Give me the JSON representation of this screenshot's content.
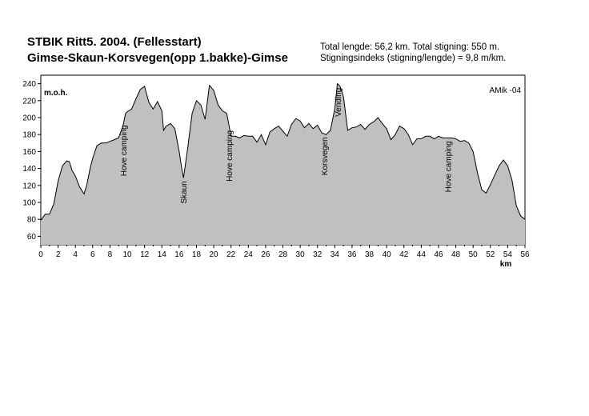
{
  "header": {
    "title_line1": "STBIK Ritt5.  2004.  (Fellesstart)",
    "title_line2": "Gimse-Skaun-Korsvegen(opp 1.bakke)-Gimse",
    "stats_line1": "Total lengde: 56,2 km.  Total stigning:  550 m.",
    "stats_line2": "Stigningsindeks (stigning/lengde) = 9,8 m/km."
  },
  "chart_data": {
    "type": "area",
    "title": "STBIK Ritt5.  2004.  (Fellesstart)",
    "subtitle": "Gimse-Skaun-Korsvegen(opp 1.bakke)-Gimse",
    "xlabel": "km",
    "ylabel": "m.o.h.",
    "author_tag": "AMik -04",
    "xlim": [
      0,
      56
    ],
    "ylim": [
      50,
      250
    ],
    "xticks": [
      0,
      2,
      4,
      6,
      8,
      10,
      12,
      14,
      16,
      18,
      20,
      22,
      24,
      26,
      28,
      30,
      32,
      34,
      36,
      38,
      40,
      42,
      44,
      46,
      48,
      50,
      52,
      54,
      56
    ],
    "yticks": [
      60,
      80,
      100,
      120,
      140,
      160,
      180,
      200,
      220,
      240
    ],
    "fill_color": "#c0c0c0",
    "line_color": "#000000",
    "series": [
      {
        "x": [
          0,
          0.5,
          1,
          1.5,
          2,
          2.5,
          3,
          3.3,
          3.6,
          4,
          4.5,
          5,
          5.3,
          5.7,
          6,
          6.5,
          7,
          7.5,
          8,
          8.5,
          9,
          9.5,
          9.8,
          10,
          10.5,
          11,
          11.5,
          12,
          12.5,
          13,
          13.5,
          14,
          14.2,
          14.5,
          15,
          15.5,
          16,
          16.3,
          16.5,
          17,
          17.5,
          18,
          18.5,
          19,
          19.5,
          20,
          20.5,
          21,
          21.5,
          22,
          22.5,
          23,
          23.5,
          24,
          24.5,
          25,
          25.5,
          26,
          26.5,
          27,
          27.5,
          28,
          28.5,
          29,
          29.5,
          30,
          30.5,
          31,
          31.5,
          32,
          32.5,
          33,
          33.5,
          34,
          34.3,
          34.6,
          35,
          35.5,
          36,
          36.5,
          37,
          37.5,
          38,
          38.5,
          39,
          39.5,
          40,
          40.5,
          41,
          41.5,
          42,
          42.5,
          43,
          43.5,
          44,
          44.5,
          45,
          45.5,
          46,
          46.5,
          47,
          47.5,
          48,
          48.5,
          49,
          49.5,
          50,
          50.5,
          51,
          51.5,
          52,
          52.5,
          53,
          53.5,
          54,
          54.5,
          55,
          55.5,
          56
        ],
        "values": [
          79,
          86,
          86,
          98,
          125,
          143,
          149,
          148,
          138,
          131,
          118,
          110,
          120,
          140,
          152,
          167,
          170,
          170,
          172,
          174,
          176,
          190,
          205,
          207,
          210,
          222,
          233,
          237,
          218,
          210,
          219,
          208,
          185,
          190,
          193,
          187,
          160,
          140,
          129,
          165,
          205,
          220,
          215,
          198,
          238,
          232,
          215,
          208,
          205,
          178,
          178,
          176,
          179,
          178,
          178,
          171,
          180,
          168,
          183,
          187,
          190,
          184,
          178,
          192,
          199,
          196,
          188,
          193,
          187,
          191,
          182,
          180,
          185,
          210,
          240,
          237,
          225,
          185,
          188,
          189,
          192,
          186,
          192,
          195,
          200,
          193,
          187,
          174,
          180,
          190,
          187,
          180,
          168,
          175,
          175,
          178,
          178,
          175,
          178,
          176,
          176,
          176,
          175,
          172,
          173,
          170,
          160,
          135,
          115,
          111,
          121,
          132,
          143,
          150,
          143,
          126,
          96,
          84,
          80
        ]
      }
    ],
    "annotations": [
      {
        "text": "Hove camping",
        "x": 9.6
      },
      {
        "text": "Skaun",
        "x": 16.5
      },
      {
        "text": "Hove camping",
        "x": 21.8
      },
      {
        "text": "Korsvegen",
        "x": 32.8
      },
      {
        "text": "Vending",
        "x": 34.4
      },
      {
        "text": "Hove camping",
        "x": 47.1
      }
    ]
  }
}
